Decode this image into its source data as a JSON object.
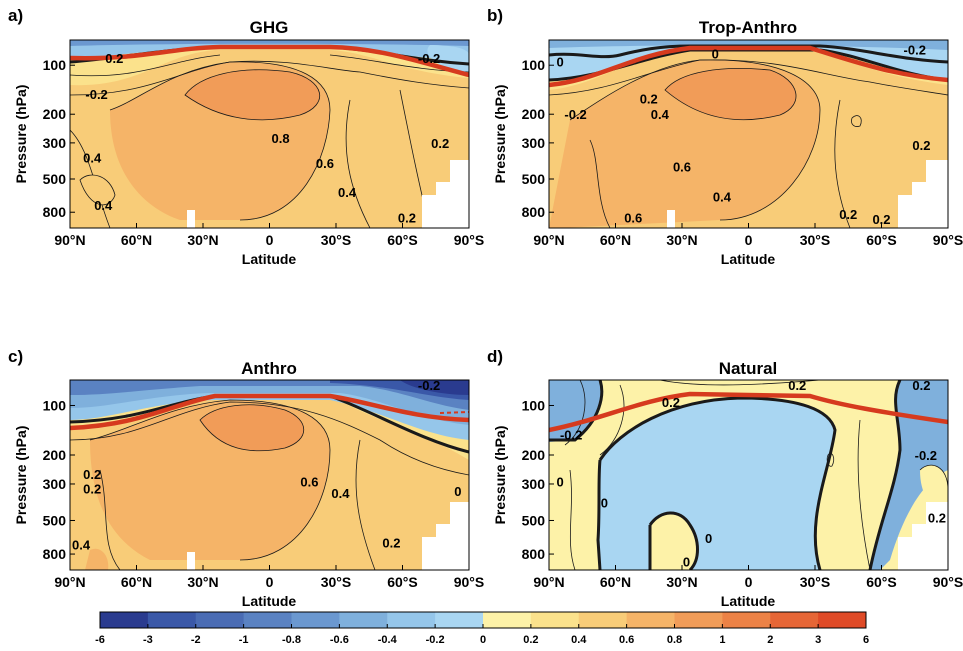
{
  "figure": {
    "panels": [
      {
        "letter": "a)",
        "title": "GHG"
      },
      {
        "letter": "b)",
        "title": "Trop-Anthro"
      },
      {
        "letter": "c)",
        "title": "Anthro"
      },
      {
        "letter": "d)",
        "title": "Natural"
      }
    ],
    "colorbar": {
      "ticks": [
        "-6",
        "-3",
        "-2",
        "-1",
        "-0.8",
        "-0.6",
        "-0.4",
        "-0.2",
        "0",
        "0.2",
        "0.4",
        "0.6",
        "0.8",
        "1",
        "2",
        "3",
        "6"
      ],
      "colors": [
        "#2a3b8f",
        "#3a58a8",
        "#4a6cb4",
        "#5a82c2",
        "#6b98d0",
        "#7fb0dc",
        "#95c6ea",
        "#a9d6f2",
        "#fdf2a8",
        "#fbe28c",
        "#f8cc78",
        "#f5b468",
        "#f19c58",
        "#ec8246",
        "#e66636",
        "#df4a27"
      ]
    },
    "colors": {
      "tropopause": "#d63a1e",
      "contour": "#1a1a1a",
      "positive_fill": "#fbe28c",
      "negative_fill": "#a9d6f2"
    }
  },
  "chart_data": [
    {
      "type": "heatmap",
      "title": "GHG",
      "xlabel": "Latitude",
      "ylabel": "Pressure (hPa)",
      "xticks": [
        "90°N",
        "60°N",
        "30°N",
        "0",
        "30°S",
        "60°S",
        "90°S"
      ],
      "yticks": [
        "100",
        "200",
        "300",
        "500",
        "800"
      ],
      "ytick_values": [
        100,
        200,
        300,
        500,
        800
      ],
      "xlim": [
        90,
        -90
      ],
      "ylim": [
        1000,
        70
      ],
      "contour_labels": [
        {
          "text": "0.2",
          "lat": 70,
          "p": 90
        },
        {
          "text": "-0.2",
          "lat": 78,
          "p": 150
        },
        {
          "text": "-0.2",
          "lat": -72,
          "p": 90
        },
        {
          "text": "0.8",
          "lat": -5,
          "p": 280
        },
        {
          "text": "0.6",
          "lat": -25,
          "p": 400
        },
        {
          "text": "0.4",
          "lat": 80,
          "p": 370
        },
        {
          "text": "0.4",
          "lat": -35,
          "p": 600
        },
        {
          "text": "0.4",
          "lat": 75,
          "p": 720
        },
        {
          "text": "0.2",
          "lat": -77,
          "p": 300
        },
        {
          "text": "0.2",
          "lat": -62,
          "p": 860
        }
      ]
    },
    {
      "type": "heatmap",
      "title": "Trop-Anthro",
      "xlabel": "Latitude",
      "ylabel": "Pressure (hPa)",
      "xticks": [
        "90°N",
        "60°N",
        "30°N",
        "0",
        "30°S",
        "60°S",
        "90°S"
      ],
      "yticks": [
        "100",
        "200",
        "300",
        "500",
        "800"
      ],
      "ytick_values": [
        100,
        200,
        300,
        500,
        800
      ],
      "xlim": [
        90,
        -90
      ],
      "ylim": [
        1000,
        70
      ],
      "contour_labels": [
        {
          "text": "0",
          "lat": 85,
          "p": 95
        },
        {
          "text": "0",
          "lat": 15,
          "p": 85
        },
        {
          "text": "-0.2",
          "lat": -75,
          "p": 80
        },
        {
          "text": "0.2",
          "lat": 45,
          "p": 160
        },
        {
          "text": "0.4",
          "lat": 40,
          "p": 200
        },
        {
          "text": "-0.2",
          "lat": 78,
          "p": 200
        },
        {
          "text": "0.6",
          "lat": 30,
          "p": 420
        },
        {
          "text": "0.4",
          "lat": 12,
          "p": 640
        },
        {
          "text": "0.6",
          "lat": 52,
          "p": 860
        },
        {
          "text": "0.2",
          "lat": -78,
          "p": 310
        },
        {
          "text": "0.2",
          "lat": -45,
          "p": 820
        },
        {
          "text": "0.2",
          "lat": -60,
          "p": 880
        }
      ]
    },
    {
      "type": "heatmap",
      "title": "Anthro",
      "xlabel": "Latitude",
      "ylabel": "Pressure (hPa)",
      "xticks": [
        "90°N",
        "60°N",
        "30°N",
        "0",
        "30°S",
        "60°S",
        "90°S"
      ],
      "yticks": [
        "100",
        "200",
        "300",
        "500",
        "800"
      ],
      "ytick_values": [
        100,
        200,
        300,
        500,
        800
      ],
      "xlim": [
        90,
        -90
      ],
      "ylim": [
        1000,
        70
      ],
      "contour_labels": [
        {
          "text": "-0.2",
          "lat": -72,
          "p": 75
        },
        {
          "text": "0.2",
          "lat": 80,
          "p": 260
        },
        {
          "text": "0.2",
          "lat": 80,
          "p": 320
        },
        {
          "text": "0.6",
          "lat": -18,
          "p": 290
        },
        {
          "text": "0.4",
          "lat": -32,
          "p": 340
        },
        {
          "text": "0",
          "lat": -85,
          "p": 330
        },
        {
          "text": "0.2",
          "lat": -55,
          "p": 680
        },
        {
          "text": "0.4",
          "lat": 85,
          "p": 700
        }
      ]
    },
    {
      "type": "heatmap",
      "title": "Natural",
      "xlabel": "Latitude",
      "ylabel": "Pressure (hPa)",
      "xticks": [
        "90°N",
        "60°N",
        "30°N",
        "0",
        "30°S",
        "60°S",
        "90°S"
      ],
      "yticks": [
        "100",
        "200",
        "300",
        "500",
        "800"
      ],
      "ytick_values": [
        100,
        200,
        300,
        500,
        800
      ],
      "xlim": [
        90,
        -90
      ],
      "ylim": [
        1000,
        70
      ],
      "contour_labels": [
        {
          "text": "0.2",
          "lat": -22,
          "p": 75
        },
        {
          "text": "0.2",
          "lat": -78,
          "p": 75
        },
        {
          "text": "0.2",
          "lat": 35,
          "p": 95
        },
        {
          "text": "-0.2",
          "lat": 80,
          "p": 150
        },
        {
          "text": "-0.2",
          "lat": -80,
          "p": 200
        },
        {
          "text": "0",
          "lat": 85,
          "p": 290
        },
        {
          "text": "0",
          "lat": 65,
          "p": 390
        },
        {
          "text": "0",
          "lat": 18,
          "p": 640
        },
        {
          "text": "0",
          "lat": 28,
          "p": 890
        },
        {
          "text": "0.2",
          "lat": -85,
          "p": 480
        }
      ]
    }
  ]
}
